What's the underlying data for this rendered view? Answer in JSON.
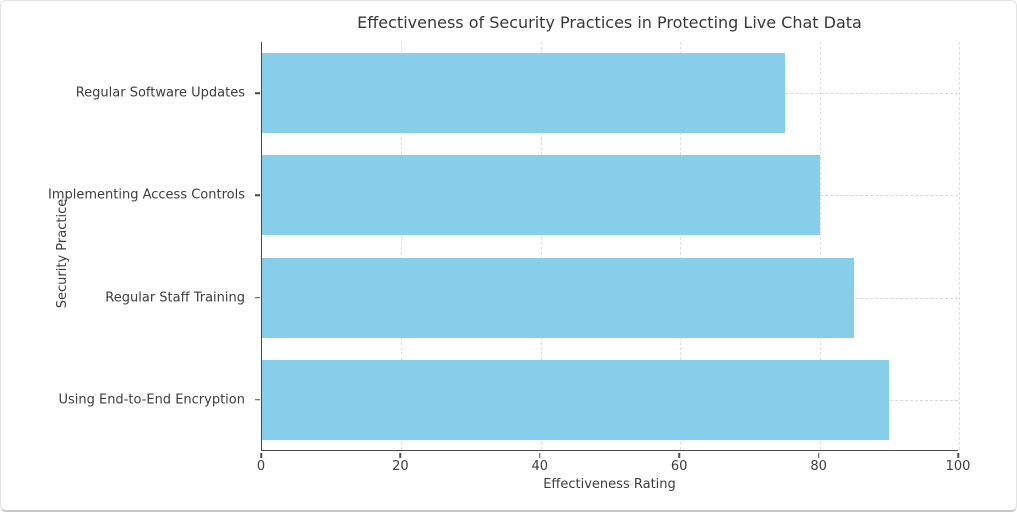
{
  "chart_data": {
    "type": "bar",
    "orientation": "horizontal",
    "title": "Effectiveness of Security Practices in Protecting Live Chat Data",
    "xlabel": "Effectiveness Rating",
    "ylabel": "Security Practice",
    "categories": [
      "Regular Software Updates",
      "Implementing Access Controls",
      "Regular Staff Training",
      "Using End-to-End Encryption"
    ],
    "values": [
      75,
      80,
      85,
      90
    ],
    "xlim": [
      0,
      100
    ],
    "xticks": [
      0,
      20,
      40,
      60,
      80,
      100
    ],
    "bar_color": "#87CEEB",
    "grid": "dashed-both-axes",
    "legend_position": "none",
    "bar_rel_height": 0.78
  }
}
